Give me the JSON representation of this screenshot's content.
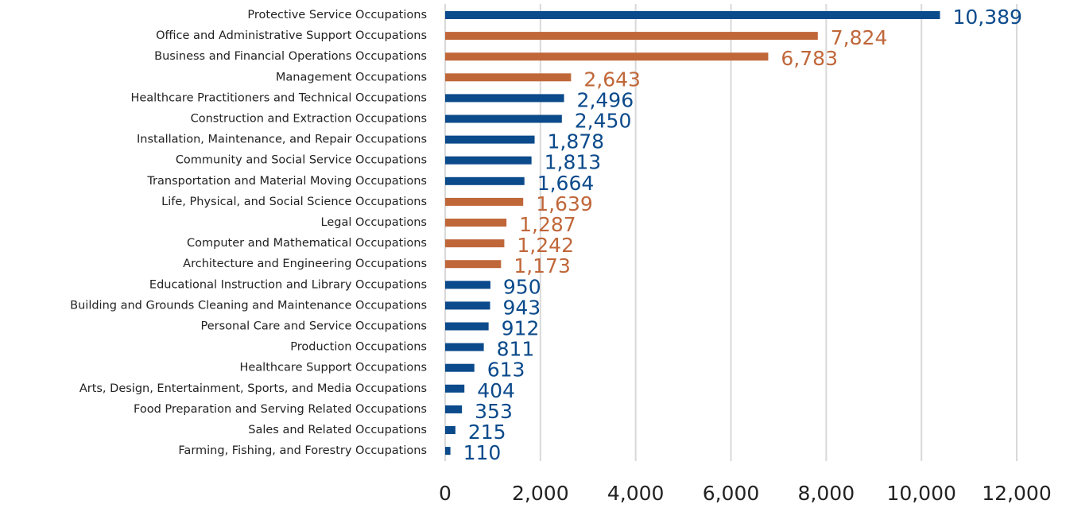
{
  "chart_data": {
    "type": "barh",
    "categories": [
      "Protective Service Occupations",
      "Office and Administrative Support Occupations",
      "Business and Financial Operations Occupations",
      "Management Occupations",
      "Healthcare Practitioners and Technical Occupations",
      "Construction and Extraction Occupations",
      "Installation, Maintenance, and Repair Occupations",
      "Community and Social Service Occupations",
      "Transportation and Material Moving Occupations",
      "Life, Physical, and Social Science Occupations",
      "Legal Occupations",
      "Computer and Mathematical Occupations",
      "Architecture and Engineering Occupations",
      "Educational Instruction and Library Occupations",
      "Building and Grounds Cleaning and Maintenance Occupations",
      "Personal Care and Service Occupations",
      "Production Occupations",
      "Healthcare Support Occupations",
      "Arts, Design, Entertainment, Sports, and Media Occupations",
      "Food Preparation and Serving Related Occupations",
      "Sales and Related Occupations",
      "Farming, Fishing, and Forestry Occupations"
    ],
    "values": [
      10389,
      7824,
      6783,
      2643,
      2496,
      2450,
      1878,
      1813,
      1664,
      1639,
      1287,
      1242,
      1173,
      950,
      943,
      912,
      811,
      613,
      404,
      353,
      215,
      110
    ],
    "value_labels": [
      "10,389",
      "7,824",
      "6,783",
      "2,643",
      "2,496",
      "2,450",
      "1,878",
      "1,813",
      "1,664",
      "1,639",
      "1,287",
      "1,242",
      "1,173",
      "950",
      "943",
      "912",
      "811",
      "613",
      "404",
      "353",
      "215",
      "110"
    ],
    "colors": [
      "#0b4a8b",
      "#c0673a",
      "#c0673a",
      "#c0673a",
      "#0b4a8b",
      "#0b4a8b",
      "#0b4a8b",
      "#0b4a8b",
      "#0b4a8b",
      "#c0673a",
      "#c0673a",
      "#c0673a",
      "#c0673a",
      "#0b4a8b",
      "#0b4a8b",
      "#0b4a8b",
      "#0b4a8b",
      "#0b4a8b",
      "#0b4a8b",
      "#0b4a8b",
      "#0b4a8b",
      "#0b4a8b"
    ],
    "xlim": [
      0,
      12000
    ],
    "xticks": [
      0,
      {
        "value": 2000,
        "label": "2,000"
      },
      {
        "value": 4000,
        "label": "4,000"
      },
      {
        "value": 6000,
        "label": "6,000"
      },
      {
        "value": 8000,
        "label": "8,000"
      },
      {
        "value": 10000,
        "label": "10,000"
      },
      {
        "value": 12000,
        "label": "12,000"
      }
    ],
    "grid": true
  }
}
